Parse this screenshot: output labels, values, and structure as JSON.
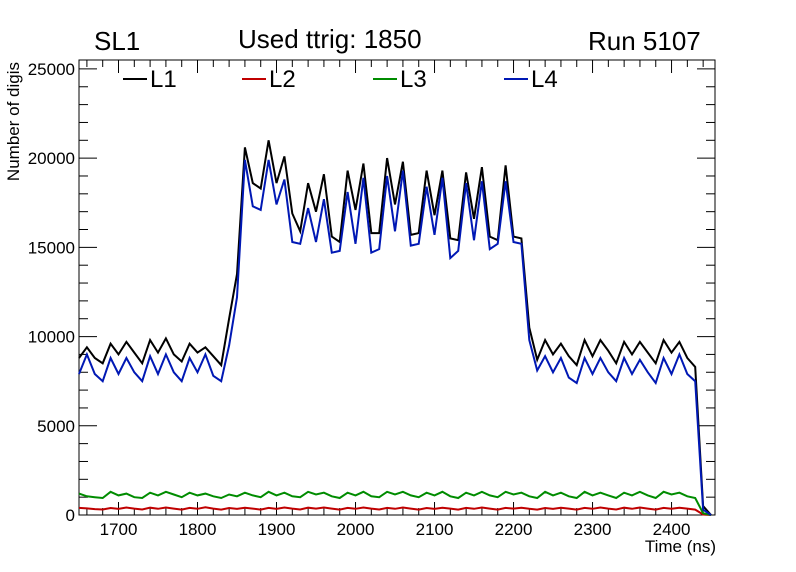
{
  "header": {
    "left": "SL1",
    "center": "Used ttrig: 1850",
    "right": "Run 5107"
  },
  "chart_data": {
    "type": "line",
    "xlabel": "Time (ns)",
    "ylabel": "Number of digis",
    "xlim": [
      1650,
      2455
    ],
    "ylim": [
      0,
      25500
    ],
    "x_ticks": [
      1700,
      1800,
      1900,
      2000,
      2100,
      2200,
      2300,
      2400
    ],
    "y_ticks": [
      0,
      5000,
      10000,
      15000,
      20000,
      25000
    ],
    "x_tick_labels": [
      "1700",
      "1800",
      "1900",
      "2000",
      "2100",
      "2200",
      "2300",
      "2400"
    ],
    "y_tick_labels": [
      "0",
      "5000",
      "10000",
      "15000",
      "20000",
      "25000"
    ],
    "legend_position": "top",
    "x": [
      1650,
      1660,
      1670,
      1680,
      1690,
      1700,
      1710,
      1720,
      1730,
      1740,
      1750,
      1760,
      1770,
      1780,
      1790,
      1800,
      1810,
      1820,
      1830,
      1840,
      1850,
      1860,
      1870,
      1880,
      1890,
      1900,
      1910,
      1920,
      1930,
      1940,
      1950,
      1960,
      1970,
      1980,
      1990,
      2000,
      2010,
      2020,
      2030,
      2040,
      2050,
      2060,
      2070,
      2080,
      2090,
      2100,
      2110,
      2120,
      2130,
      2140,
      2150,
      2160,
      2170,
      2180,
      2190,
      2200,
      2210,
      2220,
      2230,
      2240,
      2250,
      2260,
      2270,
      2280,
      2290,
      2300,
      2310,
      2320,
      2330,
      2340,
      2350,
      2360,
      2370,
      2380,
      2390,
      2400,
      2410,
      2420,
      2430,
      2440,
      2450
    ],
    "series": [
      {
        "name": "L1",
        "color": "#000000",
        "values": [
          8800,
          9400,
          8800,
          8500,
          9600,
          9000,
          9700,
          9100,
          8500,
          9800,
          9100,
          9900,
          9000,
          8600,
          9600,
          9100,
          9400,
          8900,
          8400,
          11000,
          13500,
          20600,
          18600,
          18300,
          21000,
          18600,
          20100,
          16900,
          15900,
          18600,
          17000,
          19100,
          15600,
          15300,
          19300,
          17100,
          19700,
          15800,
          15800,
          20000,
          17400,
          19800,
          15700,
          15800,
          19300,
          16800,
          19300,
          15500,
          15400,
          19200,
          16600,
          19500,
          15600,
          15400,
          19600,
          15600,
          15500,
          10500,
          8700,
          9800,
          9000,
          9600,
          8900,
          8400,
          9800,
          8900,
          9800,
          9200,
          8500,
          9700,
          9000,
          9700,
          9100,
          8500,
          9800,
          9100,
          9700,
          8800,
          8300,
          500,
          0
        ]
      },
      {
        "name": "L2",
        "color": "#c00000",
        "values": [
          400,
          370,
          330,
          310,
          390,
          340,
          420,
          360,
          310,
          410,
          350,
          420,
          360,
          300,
          400,
          350,
          430,
          360,
          300,
          390,
          340,
          410,
          360,
          300,
          400,
          340,
          420,
          360,
          310,
          410,
          360,
          420,
          360,
          300,
          400,
          350,
          420,
          360,
          310,
          400,
          350,
          420,
          360,
          300,
          390,
          340,
          410,
          360,
          300,
          400,
          350,
          420,
          360,
          300,
          400,
          360,
          410,
          350,
          300,
          390,
          340,
          410,
          360,
          300,
          400,
          350,
          420,
          360,
          310,
          410,
          350,
          420,
          360,
          300,
          400,
          350,
          410,
          360,
          300,
          30,
          0
        ]
      },
      {
        "name": "L3",
        "color": "#008c00",
        "values": [
          1200,
          1050,
          1000,
          950,
          1300,
          1100,
          1200,
          1000,
          950,
          1250,
          1100,
          1300,
          1150,
          1000,
          1250,
          1100,
          1200,
          1050,
          950,
          1150,
          1050,
          1250,
          1100,
          1000,
          1300,
          1100,
          1250,
          1050,
          1000,
          1300,
          1150,
          1250,
          1050,
          950,
          1250,
          1100,
          1300,
          1050,
          1000,
          1300,
          1150,
          1300,
          1100,
          1000,
          1250,
          1100,
          1300,
          1050,
          950,
          1250,
          1100,
          1300,
          1100,
          1000,
          1300,
          1150,
          1250,
          1050,
          950,
          1300,
          1100,
          1250,
          1050,
          950,
          1300,
          1100,
          1250,
          1100,
          950,
          1250,
          1100,
          1300,
          1100,
          950,
          1300,
          1150,
          1250,
          1050,
          950,
          100,
          0
        ]
      },
      {
        "name": "L4",
        "color": "#0018b4",
        "values": [
          7900,
          9000,
          7900,
          7500,
          8800,
          7900,
          8800,
          8000,
          7500,
          8900,
          7900,
          9000,
          8000,
          7500,
          8800,
          8000,
          9000,
          7800,
          7500,
          9500,
          12200,
          19900,
          17300,
          17100,
          19900,
          17400,
          18800,
          15300,
          15200,
          17200,
          15300,
          17700,
          14700,
          14800,
          18100,
          15200,
          18900,
          14700,
          14900,
          19000,
          15900,
          19300,
          15100,
          15200,
          18400,
          15700,
          18900,
          14400,
          14800,
          18600,
          15400,
          18700,
          14900,
          15200,
          18700,
          15300,
          15200,
          9800,
          8100,
          8900,
          8000,
          8800,
          7700,
          7400,
          8800,
          7900,
          8800,
          8000,
          7500,
          8800,
          7900,
          8700,
          8000,
          7400,
          8800,
          7900,
          9000,
          7900,
          7500,
          300,
          0
        ]
      }
    ]
  }
}
